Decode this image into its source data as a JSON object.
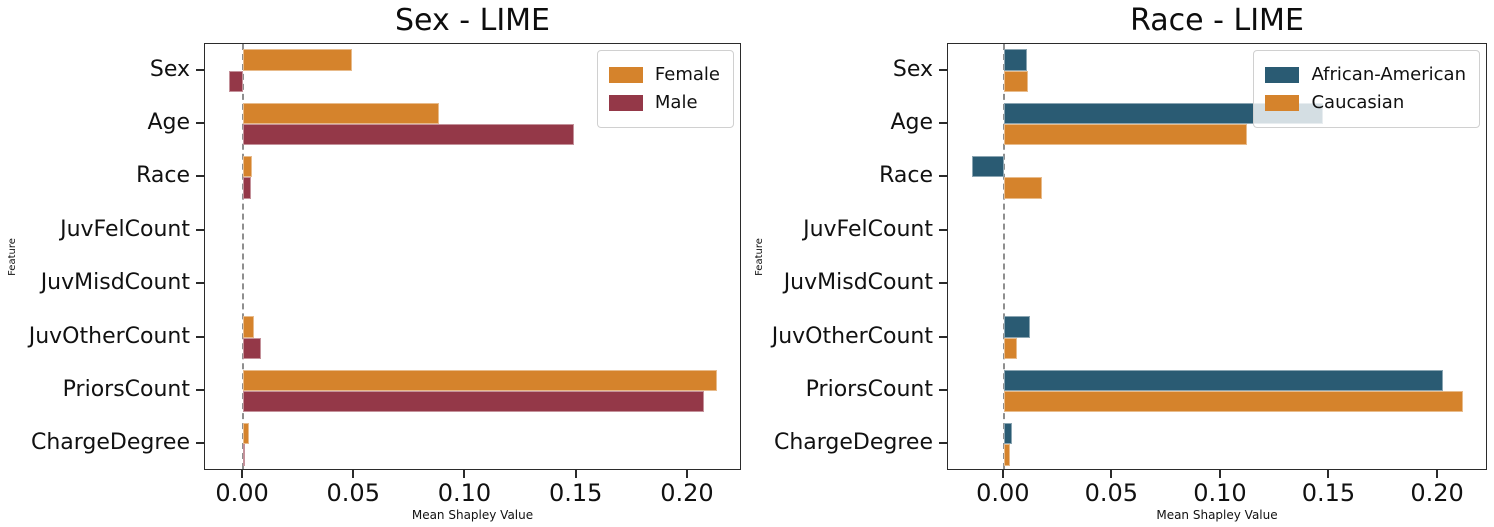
{
  "figure": {
    "background": "#ffffff"
  },
  "chart_data": [
    {
      "type": "bar",
      "orientation": "horizontal",
      "title": "Sex - LIME",
      "xlabel": "Mean Shapley Value",
      "ylabel": "Feature",
      "categories": [
        "Sex",
        "Age",
        "Race",
        "JuvFelCount",
        "JuvMisdCount",
        "JuvOtherCount",
        "PriorsCount",
        "ChargeDegree"
      ],
      "series": [
        {
          "name": "Female",
          "color": "#d5832c",
          "values": [
            0.049,
            0.088,
            0.004,
            0.0,
            0.0,
            0.005,
            0.213,
            0.0025
          ]
        },
        {
          "name": "Male",
          "color": "#943848",
          "values": [
            -0.0065,
            0.149,
            0.0035,
            0.0,
            0.0,
            0.008,
            0.207,
            0.0005
          ]
        }
      ],
      "xlim": [
        -0.0171,
        0.2243
      ],
      "xticks": [
        {
          "value": 0.0,
          "label": "0.00"
        },
        {
          "value": 0.05,
          "label": "0.05"
        },
        {
          "value": 0.1,
          "label": "0.10"
        },
        {
          "value": 0.15,
          "label": "0.15"
        },
        {
          "value": 0.2,
          "label": "0.20"
        }
      ],
      "zero_line": true,
      "grid": false,
      "legend_position": "upper right"
    },
    {
      "type": "bar",
      "orientation": "horizontal",
      "title": "Race - LIME",
      "xlabel": "Mean Shapley Value",
      "ylabel": "Feature",
      "categories": [
        "Sex",
        "Age",
        "Race",
        "JuvFelCount",
        "JuvMisdCount",
        "JuvOtherCount",
        "PriorsCount",
        "ChargeDegree"
      ],
      "series": [
        {
          "name": "African-American",
          "color": "#2a5b73",
          "values": [
            0.0105,
            0.147,
            -0.0145,
            0.0,
            0.0,
            0.012,
            0.2025,
            0.004
          ]
        },
        {
          "name": "Caucasian",
          "color": "#d5832c",
          "values": [
            0.011,
            0.112,
            0.0175,
            0.0,
            0.0,
            0.006,
            0.2115,
            0.003
          ]
        }
      ],
      "xlim": [
        -0.0257,
        0.223
      ],
      "xticks": [
        {
          "value": 0.0,
          "label": "0.00"
        },
        {
          "value": 0.05,
          "label": "0.05"
        },
        {
          "value": 0.1,
          "label": "0.10"
        },
        {
          "value": 0.15,
          "label": "0.15"
        },
        {
          "value": 0.2,
          "label": "0.20"
        }
      ],
      "zero_line": true,
      "grid": false,
      "legend_position": "upper right"
    }
  ]
}
